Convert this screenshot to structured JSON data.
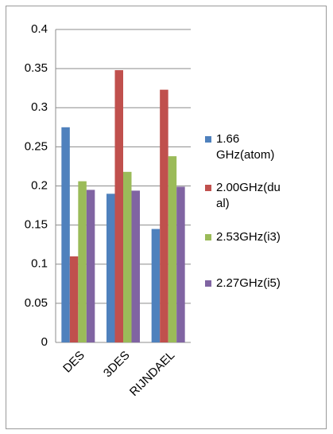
{
  "chart_data": {
    "type": "bar",
    "categories": [
      "DES",
      "3DES",
      "RIJNDAEL"
    ],
    "series": [
      {
        "name": "1.66 GHz(atom)",
        "color": "#4f81bd",
        "values": [
          0.275,
          0.19,
          0.145
        ]
      },
      {
        "name": "2.00GHz(dual)",
        "color": "#c0504d",
        "values": [
          0.11,
          0.348,
          0.323
        ]
      },
      {
        "name": "2.53GHz(i3)",
        "color": "#9bbb59",
        "values": [
          0.206,
          0.218,
          0.238
        ]
      },
      {
        "name": "2.27GHz(i5)",
        "color": "#8064a2",
        "values": [
          0.195,
          0.194,
          0.199
        ]
      }
    ],
    "ylim": [
      0,
      0.4
    ],
    "yticks": [
      0,
      0.05,
      0.1,
      0.15,
      0.2,
      0.25,
      0.3,
      0.35,
      0.4
    ],
    "grid": true,
    "legend": "right"
  }
}
